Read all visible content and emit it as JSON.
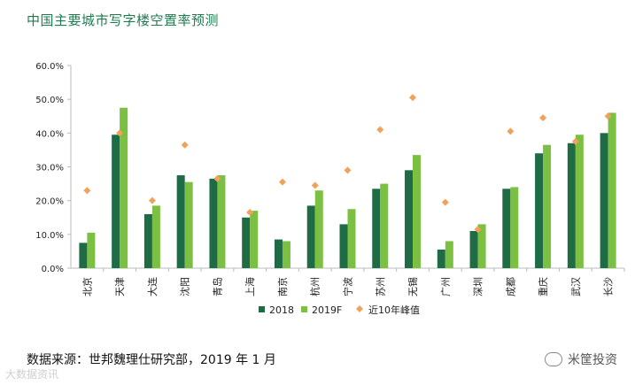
{
  "title": "中国主要城市写字楼空置率预测",
  "source": "数据来源：世邦魏理仕研究部，2019 年 1 月",
  "brand": "米筐投资",
  "watermark": "大数据资讯",
  "colors": {
    "s2018": "#1e6b45",
    "s2019": "#7bc043",
    "peak": "#f0a15a",
    "axis": "#bbbbbb",
    "text": "#222222"
  },
  "chart_data": {
    "type": "bar",
    "title": "中国主要城市写字楼空置率预测",
    "xlabel": "",
    "ylabel": "",
    "ylim": [
      0,
      60
    ],
    "yticks": [
      0,
      10,
      20,
      30,
      40,
      50,
      60
    ],
    "ytick_labels": [
      "0.0%",
      "10.0%",
      "20.0%",
      "30.0%",
      "40.0%",
      "50.0%",
      "60.0%"
    ],
    "categories": [
      "北京",
      "天津",
      "大连",
      "沈阳",
      "青岛",
      "上海",
      "南京",
      "杭州",
      "宁波",
      "苏州",
      "无锡",
      "广州",
      "深圳",
      "成都",
      "重庆",
      "武汉",
      "长沙"
    ],
    "series": [
      {
        "name": "2018",
        "kind": "bar",
        "values": [
          7.5,
          39.5,
          16.0,
          27.5,
          26.5,
          15.0,
          8.5,
          18.5,
          13.0,
          23.5,
          29.0,
          5.5,
          11.0,
          23.5,
          34.0,
          37.0,
          40.0
        ]
      },
      {
        "name": "2019F",
        "kind": "bar",
        "values": [
          10.5,
          47.5,
          18.5,
          25.5,
          27.5,
          17.0,
          8.0,
          23.0,
          17.5,
          25.0,
          33.5,
          8.0,
          13.0,
          24.0,
          36.5,
          39.5,
          46.0
        ]
      },
      {
        "name": "近10年峰值",
        "kind": "marker",
        "values": [
          23.0,
          40.0,
          20.0,
          36.5,
          26.5,
          16.5,
          25.5,
          24.5,
          29.0,
          41.0,
          50.5,
          19.5,
          11.5,
          40.5,
          44.5,
          37.5,
          45.0
        ]
      }
    ],
    "legend_position": "bottom"
  }
}
